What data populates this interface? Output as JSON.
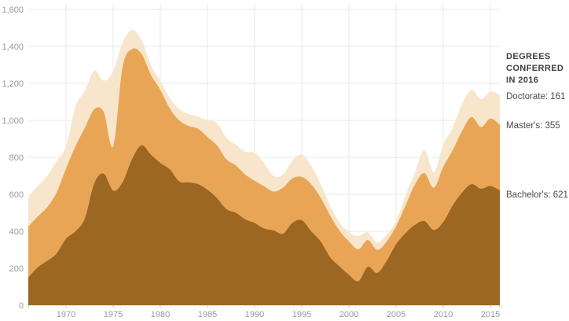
{
  "legend": {
    "heading_lines": [
      "DEGREES",
      "CONFERRED",
      "IN 2016"
    ],
    "items": [
      {
        "name": "doctorate",
        "label": "Doctorate: 161",
        "value": 161
      },
      {
        "name": "masters",
        "label": "Master's: 355",
        "value": 355
      },
      {
        "name": "bachelors",
        "label": "Bachelor's: 621",
        "value": 621
      }
    ]
  },
  "colors": {
    "bachelors_area": "#9c6623",
    "masters_area": "#e9a556",
    "doctorate_area": "#f7e6cb",
    "gridline": "#e8e8e8",
    "tick": "#cccccc",
    "axis_label": "#999999",
    "background": "#ffffff"
  },
  "chart_data": {
    "type": "area",
    "stacked": true,
    "title": "",
    "xlabel": "",
    "ylabel": "",
    "legend_position": "right",
    "grid": true,
    "xlim": [
      1966,
      2016
    ],
    "ylim": [
      0,
      1600
    ],
    "x": [
      1966,
      1967,
      1968,
      1969,
      1970,
      1971,
      1972,
      1973,
      1974,
      1975,
      1976,
      1977,
      1978,
      1979,
      1980,
      1981,
      1982,
      1983,
      1984,
      1985,
      1986,
      1987,
      1988,
      1989,
      1990,
      1991,
      1992,
      1993,
      1994,
      1995,
      1996,
      1997,
      1998,
      1999,
      2000,
      2001,
      2002,
      2003,
      2004,
      2005,
      2006,
      2007,
      2008,
      2009,
      2010,
      2011,
      2012,
      2013,
      2014,
      2015,
      2016
    ],
    "series": [
      {
        "name": "Bachelor's",
        "color": "#9c6623",
        "values": [
          150,
          205,
          240,
          280,
          360,
          400,
          470,
          660,
          712,
          620,
          665,
          790,
          865,
          815,
          770,
          735,
          670,
          665,
          655,
          625,
          580,
          520,
          500,
          465,
          445,
          415,
          405,
          387,
          445,
          460,
          400,
          345,
          260,
          210,
          165,
          130,
          208,
          175,
          240,
          330,
          390,
          435,
          455,
          407,
          450,
          540,
          610,
          655,
          630,
          645,
          621
        ]
      },
      {
        "name": "Master's",
        "color": "#e9a556",
        "values": [
          275,
          275,
          290,
          330,
          380,
          460,
          490,
          400,
          333,
          240,
          625,
          595,
          495,
          432,
          395,
          330,
          330,
          305,
          300,
          285,
          285,
          270,
          256,
          242,
          228,
          229,
          210,
          249,
          241,
          234,
          255,
          237,
          226,
          193,
          180,
          173,
          145,
          124,
          105,
          98,
          150,
          218,
          260,
          229,
          298,
          299,
          333,
          363,
          334,
          365,
          355
        ]
      },
      {
        "name": "Doctorate",
        "color": "#f7e6cb",
        "values": [
          160,
          165,
          170,
          170,
          120,
          215,
          200,
          210,
          170,
          405,
          130,
          105,
          75,
          53,
          50,
          55,
          60,
          65,
          65,
          90,
          120,
          116,
          114,
          124,
          152,
          125,
          85,
          71,
          96,
          121,
          100,
          73,
          54,
          46,
          50,
          71,
          42,
          42,
          37,
          29,
          55,
          67,
          125,
          84,
          122,
          121,
          147,
          147,
          151,
          145,
          161
        ]
      }
    ],
    "xticks": [
      {
        "value": 1970,
        "label": "1970"
      },
      {
        "value": 1975,
        "label": "1975"
      },
      {
        "value": 1980,
        "label": "1980"
      },
      {
        "value": 1985,
        "label": "1985"
      },
      {
        "value": 1990,
        "label": "1990"
      },
      {
        "value": 1995,
        "label": "1995"
      },
      {
        "value": 2000,
        "label": "2000"
      },
      {
        "value": 2005,
        "label": "2005"
      },
      {
        "value": 2010,
        "label": "2010"
      },
      {
        "value": 2015,
        "label": "2015"
      }
    ],
    "yticks": [
      {
        "value": 0,
        "label": "0"
      },
      {
        "value": 200,
        "label": "200"
      },
      {
        "value": 400,
        "label": "400"
      },
      {
        "value": 600,
        "label": "600"
      },
      {
        "value": 800,
        "label": "800"
      },
      {
        "value": 1000,
        "label": "1,000"
      },
      {
        "value": 1200,
        "label": "1,200"
      },
      {
        "value": 1400,
        "label": "1,400"
      },
      {
        "value": 1600,
        "label": "1,600"
      }
    ]
  }
}
